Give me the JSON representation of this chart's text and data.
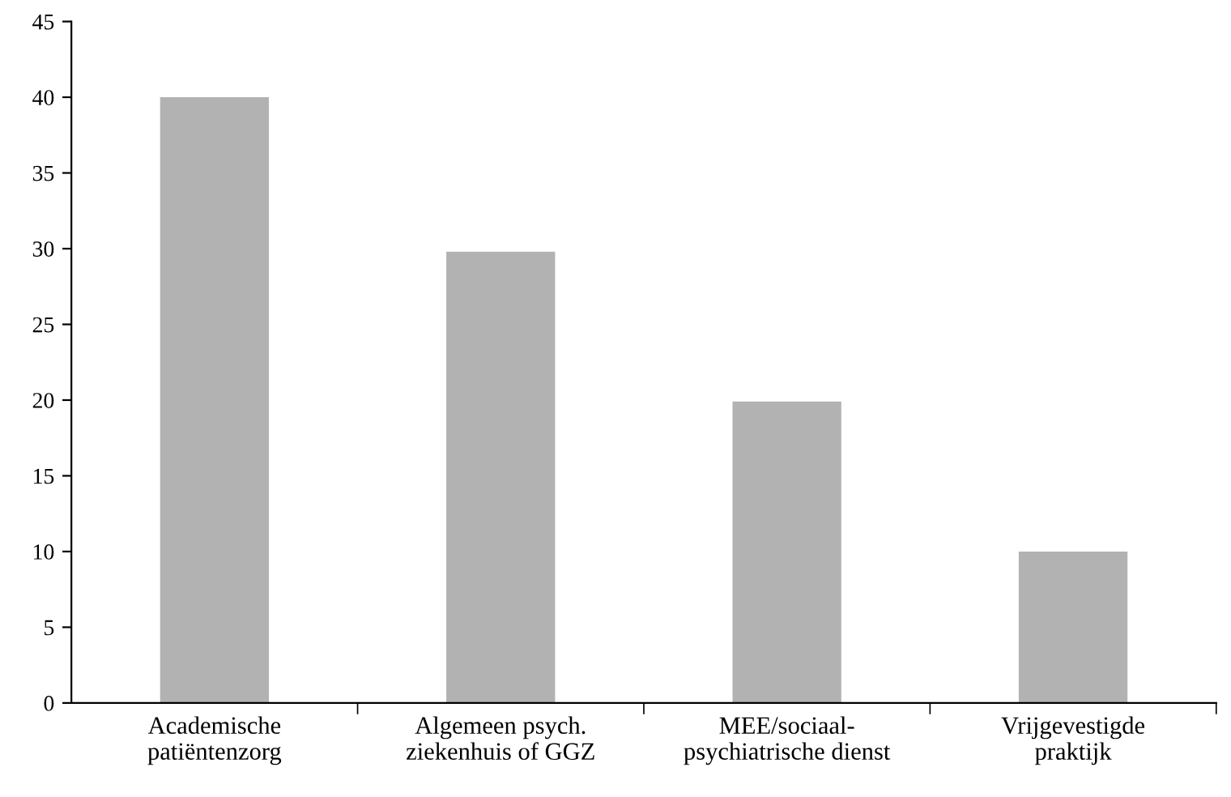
{
  "chart_data": {
    "type": "bar",
    "categories": [
      "Academische\npatiëntenzorg",
      "Algemeen psych.\nziekenhuis of GGZ",
      "MEE/sociaal-\npsychiatrische dienst",
      "Vrijgevestigde\npraktijk"
    ],
    "values": [
      40,
      29.8,
      19.9,
      10
    ],
    "color": "#b2b2b2",
    "ylim": [
      0,
      45
    ],
    "yticks": [
      0,
      5,
      10,
      15,
      20,
      25,
      30,
      35,
      40,
      45
    ],
    "grid": false
  }
}
